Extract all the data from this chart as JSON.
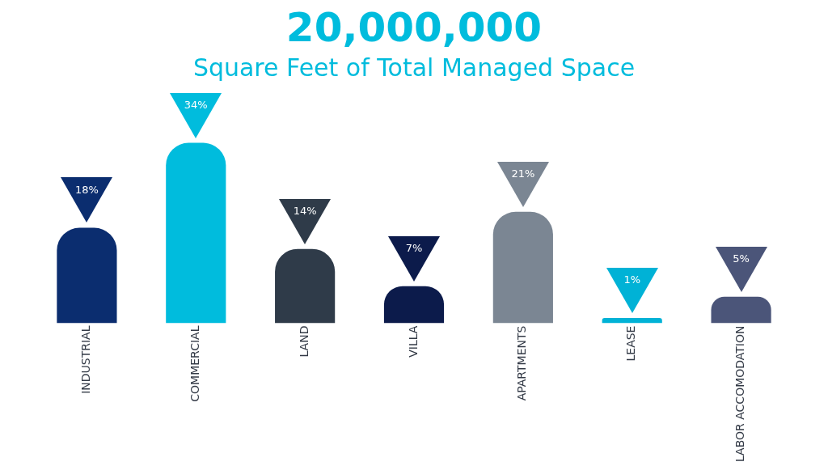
{
  "chart_data": {
    "type": "bar",
    "title": "20,000,000",
    "subtitle": "Square Feet of Total Managed Space",
    "categories": [
      "INDUSTRIAL",
      "COMMERCIAL",
      "LAND",
      "VILLA",
      "APARTMENTS",
      "LEASE",
      "LABOR ACCOMODATION"
    ],
    "values": [
      18,
      34,
      14,
      7,
      21,
      1,
      5
    ],
    "colors": [
      "#0b2d6f",
      "#00bcdd",
      "#2f3b49",
      "#0c1b4b",
      "#7b8693",
      "#00b2d6",
      "#4b5579"
    ],
    "value_labels": [
      "18%",
      "34%",
      "14%",
      "7%",
      "21%",
      "1%",
      "5%"
    ],
    "legend": false,
    "grid": false
  }
}
